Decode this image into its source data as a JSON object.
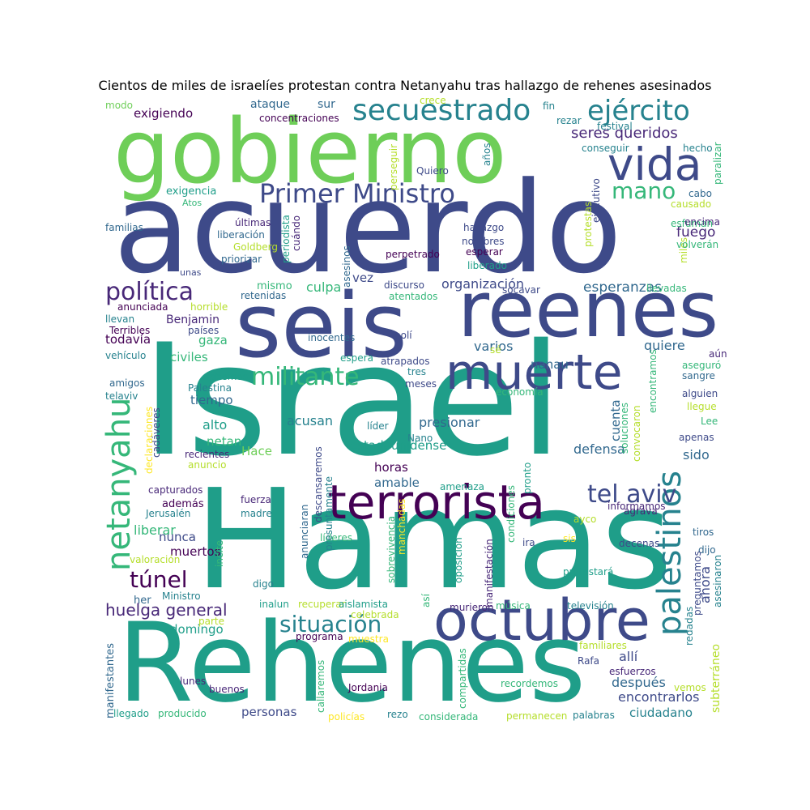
{
  "title": "Cientos de miles de israelíes protestan contra Netanyahu tras hallazgo de rehenes asesinados",
  "palette": [
    "#440154",
    "#482878",
    "#3e4a89",
    "#31688e",
    "#26828e",
    "#1f9e89",
    "#35b779",
    "#6ece58",
    "#b5de2b",
    "#fde725"
  ],
  "words": [
    "Israel",
    "Hamas",
    "Rehenes",
    "acuerdo",
    "gobierno",
    "seis",
    "reenes",
    "octubre",
    "muerte",
    "terrorista",
    "vida",
    "secuestrado",
    "ejército",
    "Primer Ministro",
    "militante",
    "palestinos",
    "netanyahu",
    "política",
    "tel aviv",
    "situación",
    "túnel",
    "mano",
    "huelga general",
    "seres queridos",
    "esperanzas",
    "fuego",
    "organización",
    "culpa",
    "presionar",
    "acusan",
    "defensa",
    "varios",
    "quiere",
    "sido",
    "ahora",
    "exigiendo",
    "ataque",
    "sur",
    "concentraciones",
    "exigencia",
    "Atos",
    "familias",
    "últimas",
    "liberación",
    "Goldberg",
    "priorizar",
    "unas",
    "anunciada",
    "horrible",
    "llevan",
    "Benjamin",
    "Terribles",
    "países",
    "todavía",
    "gaza",
    "vehículo",
    "civiles",
    "amigos",
    "telaviv",
    "Palestina",
    "sabemos",
    "tiempo",
    "alto",
    "netan",
    "Hace",
    "recientes",
    "anuncio",
    "cadáveres",
    "declaraciones",
    "capturados",
    "además",
    "Jerusalén",
    "liberar",
    "nunca",
    "muertos",
    "valoración",
    "her",
    "Ministro",
    "domingo",
    "parte",
    "manifestantes",
    "lunes",
    "buenos",
    "llegado",
    "producido",
    "programa",
    "callaremos",
    "policías",
    "rezo",
    "considerada",
    "compartidas",
    "recordemos",
    "permanecen",
    "palabras",
    "ciudadano",
    "encontrarlos",
    "después",
    "allí",
    "Rafa",
    "esfuerzos",
    "subterráneo",
    "vemos",
    "familiares",
    "muestra",
    "Jordania",
    "personas",
    "digo",
    "inalun",
    "recuperar",
    "aislamista",
    "celebrada",
    "así",
    "murieron",
    "música",
    "televisión",
    "manifestación",
    "oposición",
    "sobrevivencia",
    "manchadas",
    "líderes",
    "ira",
    "sis",
    "ayco",
    "decenas",
    "protestará",
    "dijo",
    "tiros",
    "asesinaron",
    "preguntamos",
    "redadas",
    "agrava",
    "informamos",
    "convocaron",
    "soluciones",
    "cuenta",
    "apenas",
    "Lee",
    "llegue",
    "alguien",
    "sangre",
    "aseguró",
    "aún",
    "encontramos",
    "pronto",
    "condiciones",
    "amenaza",
    "economía",
    "meses",
    "tres",
    "atrapados",
    "espera",
    "sé",
    "polí",
    "nanau",
    "inocentes",
    "atentados",
    "retenidas",
    "mismo",
    "vez",
    "discurso",
    "socavar",
    "llevadas",
    "miles",
    "volverán",
    "esfuman",
    "encima",
    "causado",
    "cabo",
    "paralizar",
    "hecho",
    "festival",
    "conseguir",
    "fin",
    "rezar",
    "crece",
    "modo",
    "perseguir",
    "Quiero",
    "años",
    "ejecutivo",
    "cuándo",
    "periodista",
    "asesinos",
    "perpetrado",
    "hallazgo",
    "nombres",
    "esperar",
    "liberado",
    "protestas",
    "líder",
    "Nano",
    "estadounidense",
    "horas",
    "amable",
    "fuerza",
    "madre",
    "incite",
    "anunciaran",
    "descansaremos",
    "presuntamente"
  ]
}
